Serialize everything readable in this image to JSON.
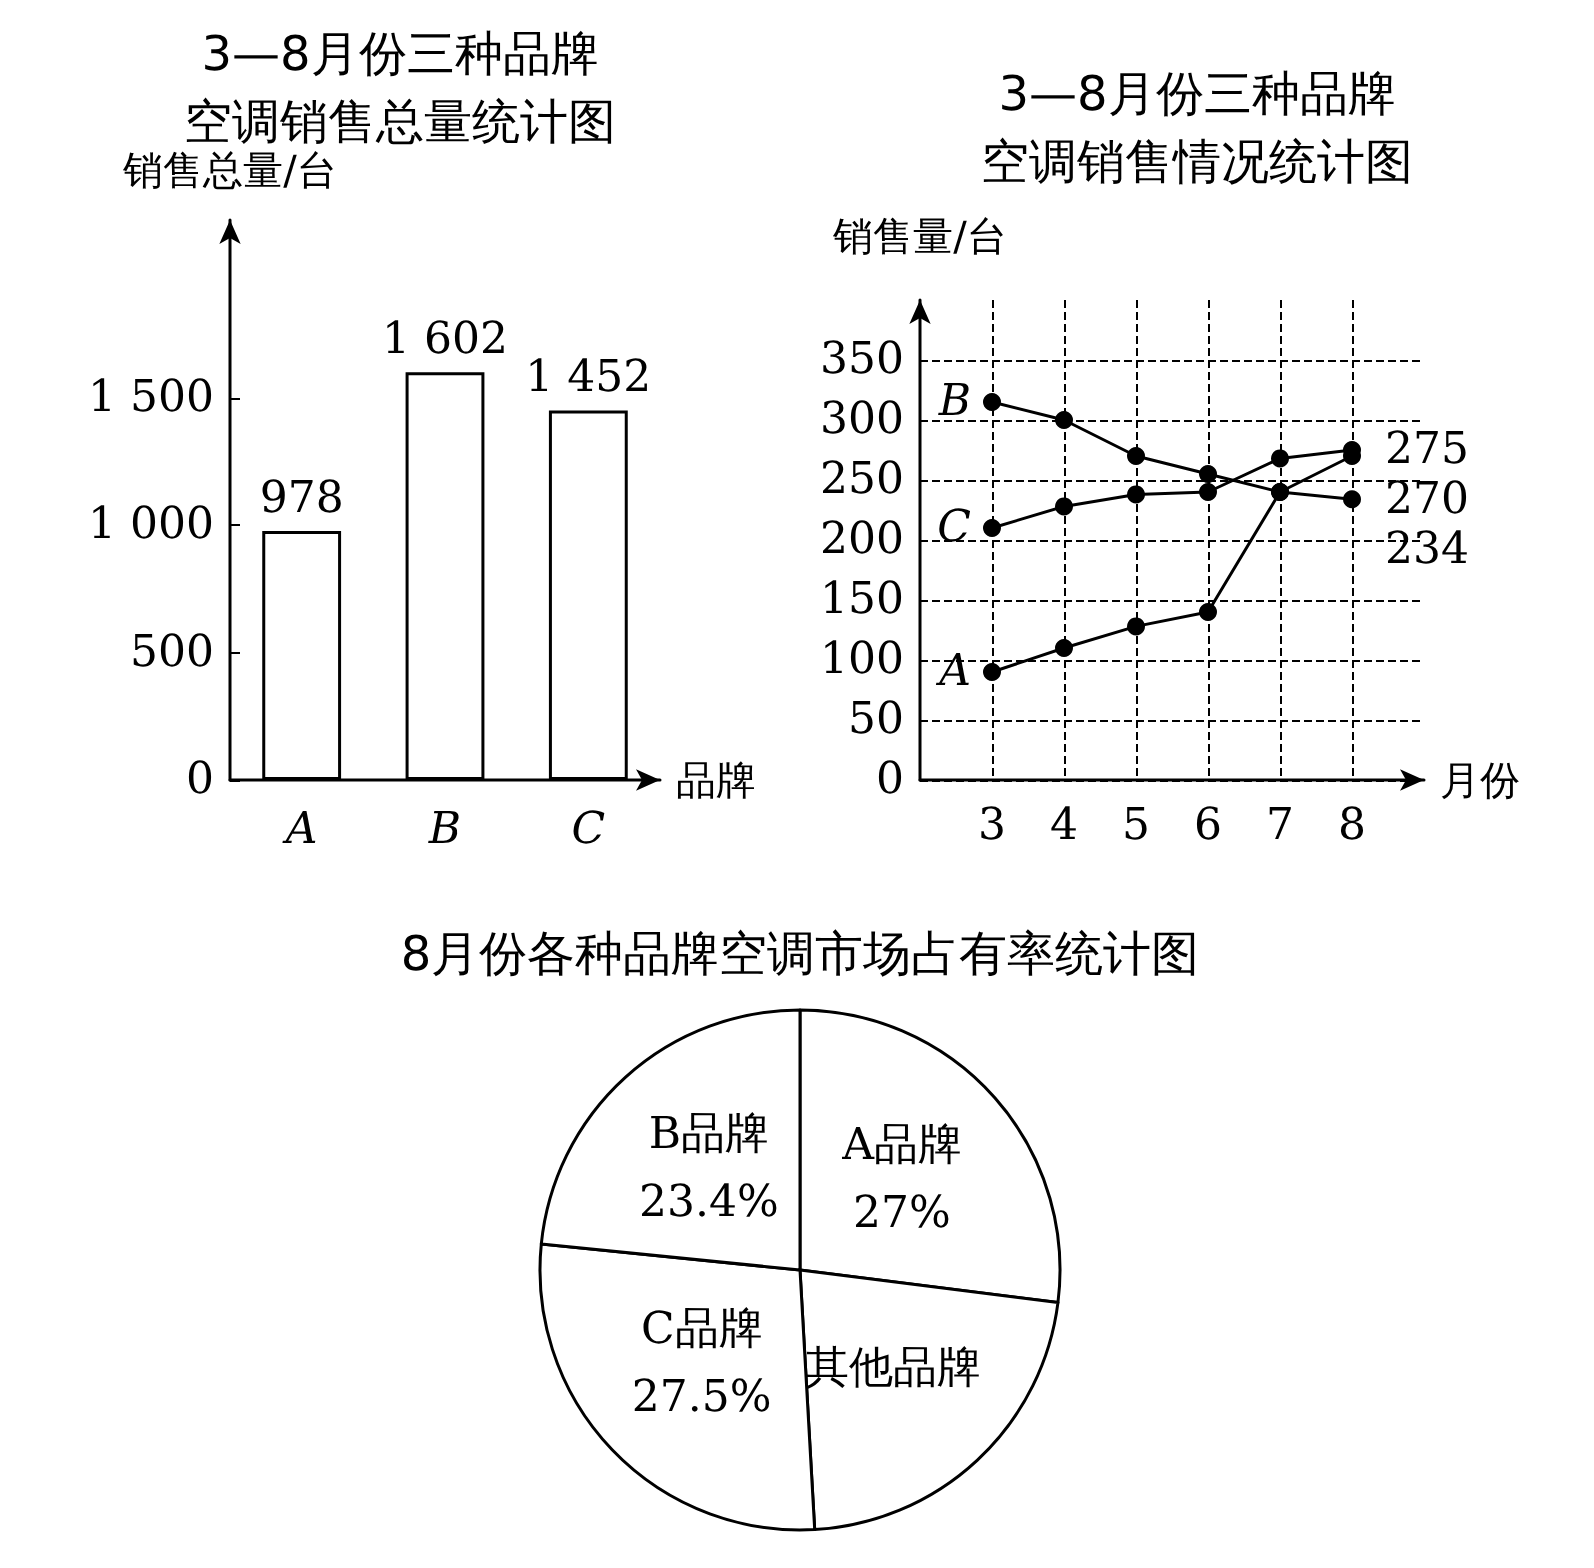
{
  "chart_data": [
    {
      "type": "bar",
      "title": "3—8月份三种品牌空调销售总量统计图",
      "xlabel": "品牌",
      "ylabel": "销售总量/台",
      "categories": [
        "A",
        "B",
        "C"
      ],
      "values": [
        978,
        1602,
        1452
      ],
      "color": "#ffffff",
      "value_labels": [
        "978",
        "1 602",
        "1 452"
      ],
      "ylim": [
        0,
        2200
      ],
      "yticks": [
        0,
        500,
        {
          "value": 1000,
          "label": "1 000"
        },
        {
          "value": 1500,
          "label": "1 500"
        }
      ],
      "grid": false,
      "legend": false
    },
    {
      "type": "line",
      "title": "3—8月份三种品牌空调销售情况统计图",
      "xlabel": "月份",
      "ylabel": "销售量/台",
      "x": [
        3,
        4,
        5,
        6,
        7,
        8
      ],
      "xlim": [
        2,
        9
      ],
      "xticks": [
        3,
        4,
        5,
        6,
        7,
        8
      ],
      "ylim": [
        0,
        400
      ],
      "yticks": [
        0,
        50,
        100,
        150,
        200,
        250,
        300,
        350
      ],
      "grid": true,
      "legend": false,
      "marker": "circle",
      "line_style": "solid",
      "series": [
        {
          "name": "A",
          "color": "#000000",
          "values": [
            90,
            110,
            128,
            140,
            240,
            270
          ],
          "value_labels": [
            null,
            null,
            null,
            null,
            null,
            "270"
          ]
        },
        {
          "name": "B",
          "color": "#000000",
          "values": [
            315,
            300,
            270,
            255,
            240,
            234
          ],
          "value_labels": [
            null,
            null,
            null,
            null,
            null,
            "234"
          ]
        },
        {
          "name": "C",
          "color": "#000000",
          "values": [
            210,
            228,
            238,
            240,
            268,
            275
          ],
          "value_labels": [
            null,
            null,
            null,
            null,
            null,
            "275"
          ]
        }
      ]
    },
    {
      "type": "pie",
      "title": "8月份各种品牌空调市场占有率统计图",
      "categories": [
        "A品牌",
        "其他品牌",
        "C品牌",
        "B品牌"
      ],
      "values": [
        27,
        22.1,
        27.5,
        23.4
      ],
      "colors": [
        "#ffffff",
        "#ffffff",
        "#ffffff",
        "#ffffff"
      ],
      "value_labels": [
        "27%",
        null,
        "27.5%",
        "23.4%"
      ],
      "legend": false
    }
  ]
}
